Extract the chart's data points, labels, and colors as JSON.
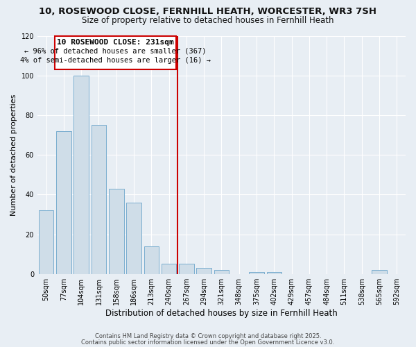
{
  "title": "10, ROSEWOOD CLOSE, FERNHILL HEATH, WORCESTER, WR3 7SH",
  "subtitle": "Size of property relative to detached houses in Fernhill Heath",
  "xlabel": "Distribution of detached houses by size in Fernhill Heath",
  "ylabel": "Number of detached properties",
  "bar_labels": [
    "50sqm",
    "77sqm",
    "104sqm",
    "131sqm",
    "158sqm",
    "186sqm",
    "213sqm",
    "240sqm",
    "267sqm",
    "294sqm",
    "321sqm",
    "348sqm",
    "375sqm",
    "402sqm",
    "429sqm",
    "457sqm",
    "484sqm",
    "511sqm",
    "538sqm",
    "565sqm",
    "592sqm"
  ],
  "bar_values": [
    32,
    72,
    100,
    75,
    43,
    36,
    14,
    5,
    5,
    3,
    2,
    0,
    1,
    1,
    0,
    0,
    0,
    0,
    0,
    2,
    0
  ],
  "bar_color": "#cfdde8",
  "bar_edge_color": "#7aaed0",
  "reference_line_x": 7.5,
  "reference_line_color": "#cc0000",
  "annotation_title": "10 ROSEWOOD CLOSE: 231sqm",
  "annotation_line1": "← 96% of detached houses are smaller (367)",
  "annotation_line2": "4% of semi-detached houses are larger (16) →",
  "annotation_box_facecolor": "#ffffff",
  "annotation_box_edgecolor": "#cc0000",
  "ylim": [
    0,
    120
  ],
  "yticks": [
    0,
    20,
    40,
    60,
    80,
    100,
    120
  ],
  "background_color": "#e8eef4",
  "grid_color": "#ffffff",
  "footer1": "Contains HM Land Registry data © Crown copyright and database right 2025.",
  "footer2": "Contains public sector information licensed under the Open Government Licence v3.0."
}
